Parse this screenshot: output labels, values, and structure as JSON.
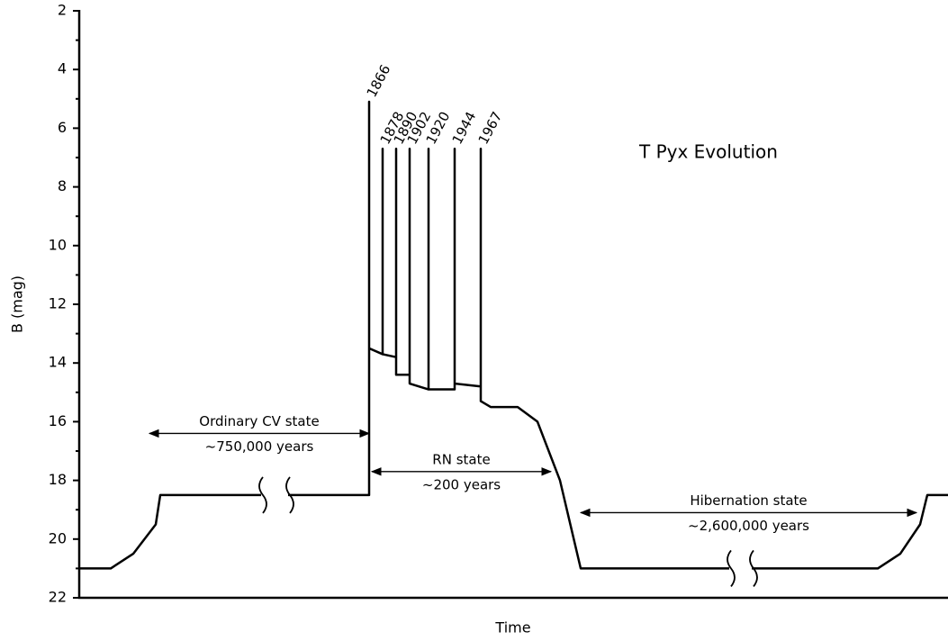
{
  "chart_data": {
    "type": "line",
    "title": "T Pyx Evolution",
    "x_label": "Time",
    "y_label": "B (mag)",
    "ylim": [
      2,
      22
    ],
    "y_inverted": true,
    "yticks": [
      2,
      4,
      6,
      8,
      10,
      12,
      14,
      16,
      18,
      20,
      22
    ],
    "yminor_ticks": [
      3,
      5,
      7,
      9,
      11,
      13,
      15,
      17,
      19,
      21
    ],
    "xlim": [
      0,
      965
    ],
    "series": [
      {
        "color": "#000000",
        "x": [
          0,
          35,
          60,
          85,
          90,
          202,
          null,
          232,
          322,
          322,
          322,
          337,
          337,
          337,
          352,
          352,
          352,
          367,
          367,
          367,
          388,
          388,
          388,
          417,
          417,
          417,
          446,
          446,
          446,
          457,
          487,
          509,
          534,
          557,
          722,
          null,
          747,
          887,
          912,
          934,
          942,
          965
        ],
        "values": [
          21,
          21,
          20.5,
          19.5,
          18.5,
          18.5,
          null,
          18.5,
          18.5,
          5.1,
          13.5,
          13.7,
          6.7,
          13.7,
          13.8,
          6.7,
          14.4,
          14.4,
          6.7,
          14.7,
          14.9,
          6.7,
          14.9,
          14.9,
          6.7,
          14.7,
          14.8,
          6.7,
          15.3,
          15.5,
          15.5,
          16,
          18,
          21,
          21,
          null,
          21,
          21,
          20.5,
          19.5,
          18.5,
          18.5
        ]
      }
    ],
    "year_labels": [
      {
        "text": "1866",
        "x": 322,
        "y": 5.1
      },
      {
        "text": "1878",
        "x": 337,
        "y": 6.7
      },
      {
        "text": "1890",
        "x": 352,
        "y": 6.7
      },
      {
        "text": "1902",
        "x": 367,
        "y": 6.7
      },
      {
        "text": "1920",
        "x": 388,
        "y": 6.7
      },
      {
        "text": "1944",
        "x": 417,
        "y": 6.7
      },
      {
        "text": "1967",
        "x": 446,
        "y": 6.7
      }
    ],
    "spans": [
      {
        "text": [
          "Ordinary CV state",
          "~750,000 years"
        ],
        "x": [
          78,
          322
        ],
        "y": 16.4
      },
      {
        "text": [
          "RN state",
          "~200 years"
        ],
        "x": [
          325,
          524
        ],
        "y": 17.7
      },
      {
        "text": [
          "Hibernation state",
          "~2,600,000 years"
        ],
        "x": [
          557,
          930
        ],
        "y": 19.1
      }
    ]
  }
}
